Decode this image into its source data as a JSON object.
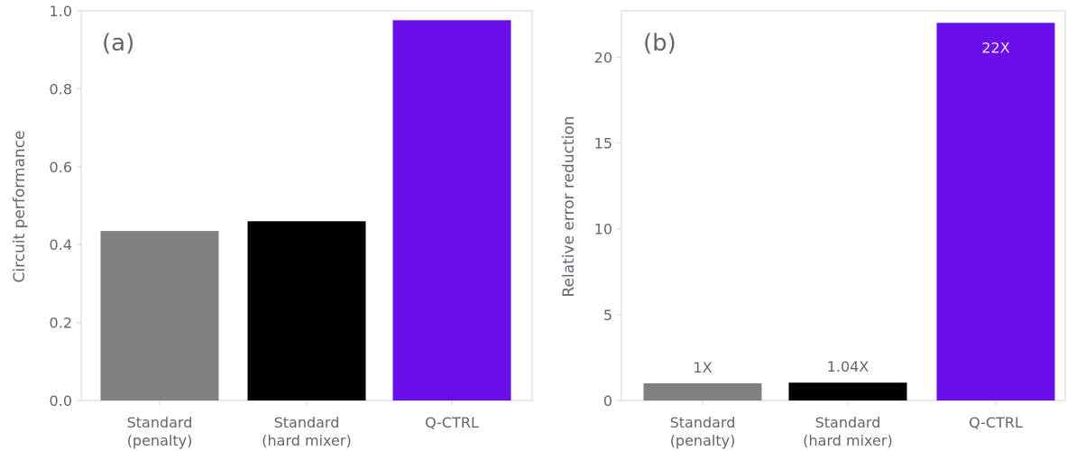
{
  "chart_data": [
    {
      "type": "bar",
      "panel_label": "(a)",
      "ylabel": "Circuit performance",
      "xlabel": "",
      "categories": [
        "Standard\n(penalty)",
        "Standard\n(hard mixer)",
        "Q-CTRL"
      ],
      "values": [
        0.435,
        0.46,
        0.976
      ],
      "bar_colors": [
        "#808080",
        "#000000",
        "#6a0fe8"
      ],
      "ylim": [
        0,
        1.0
      ],
      "yticks": [
        "0.0",
        "0.2",
        "0.4",
        "0.6",
        "0.8",
        "1.0"
      ],
      "data_labels": [],
      "grid": false
    },
    {
      "type": "bar",
      "panel_label": "(b)",
      "ylabel": "Relative error reduction",
      "xlabel": "",
      "categories": [
        "Standard\n(penalty)",
        "Standard\n(hard mixer)",
        "Q-CTRL"
      ],
      "values": [
        1.0,
        1.04,
        22.0
      ],
      "bar_colors": [
        "#808080",
        "#000000",
        "#6a0fe8"
      ],
      "ylim": [
        0,
        22.7
      ],
      "yticks": [
        "0",
        "5",
        "10",
        "15",
        "20"
      ],
      "data_labels": [
        "1X",
        "1.04X",
        "22X"
      ],
      "grid": false
    }
  ],
  "colors": {
    "axis": "#d6dbe6",
    "text": "#6b6170",
    "inside_label": "#e8e0f5"
  }
}
